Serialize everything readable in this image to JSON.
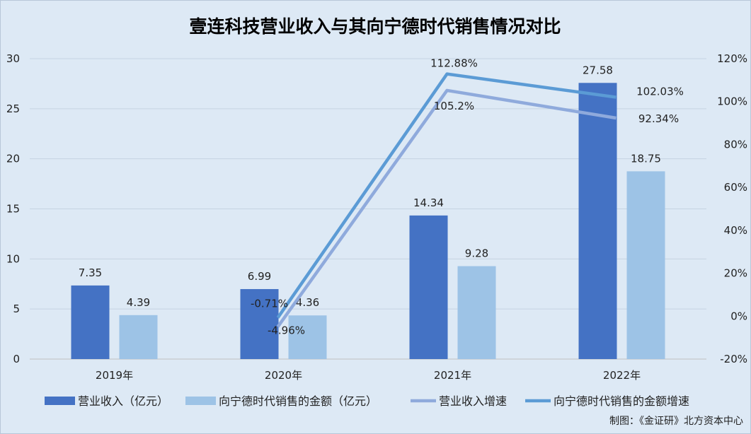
{
  "chart_data": {
    "type": "bar",
    "title": "壹连科技营业收入与其向宁德时代销售情况对比",
    "categories": [
      "2019年",
      "2020年",
      "2021年",
      "2022年"
    ],
    "series": [
      {
        "name": "营业收入（亿元）",
        "kind": "bar",
        "axis": "left",
        "color": "#4472c4",
        "values": [
          7.35,
          6.99,
          14.34,
          27.58
        ],
        "labels": [
          "7.35",
          "6.99",
          "14.34",
          "27.58"
        ]
      },
      {
        "name": "向宁德时代销售的金额（亿元）",
        "kind": "bar",
        "axis": "left",
        "color": "#9dc3e6",
        "values": [
          4.39,
          4.36,
          9.28,
          18.75
        ],
        "labels": [
          "4.39",
          "4.36",
          "9.28",
          "18.75"
        ]
      },
      {
        "name": "营业收入增速",
        "kind": "line",
        "axis": "right",
        "color": "#8faadc",
        "values": [
          null,
          -4.96,
          105.2,
          92.34
        ],
        "labels": [
          null,
          "-4.96%",
          "105.2%",
          "92.34%"
        ]
      },
      {
        "name": "向宁德时代销售的金额增速",
        "kind": "line",
        "axis": "right",
        "color": "#5b9bd5",
        "values": [
          null,
          -0.71,
          112.88,
          102.03
        ],
        "labels": [
          null,
          "-0.71%",
          "112.88%",
          "102.03%"
        ]
      }
    ],
    "y_left": {
      "min": 0,
      "max": 30,
      "ticks": [
        "0",
        "5",
        "10",
        "15",
        "20",
        "25",
        "30"
      ]
    },
    "y_right": {
      "min": -20,
      "max": 120,
      "ticks": [
        "-20%",
        "0%",
        "20%",
        "40%",
        "60%",
        "80%",
        "100%",
        "120%"
      ]
    },
    "grid": true,
    "legend_position": "bottom"
  },
  "footer": {
    "source": "制图：《金证研》北方资本中心"
  }
}
